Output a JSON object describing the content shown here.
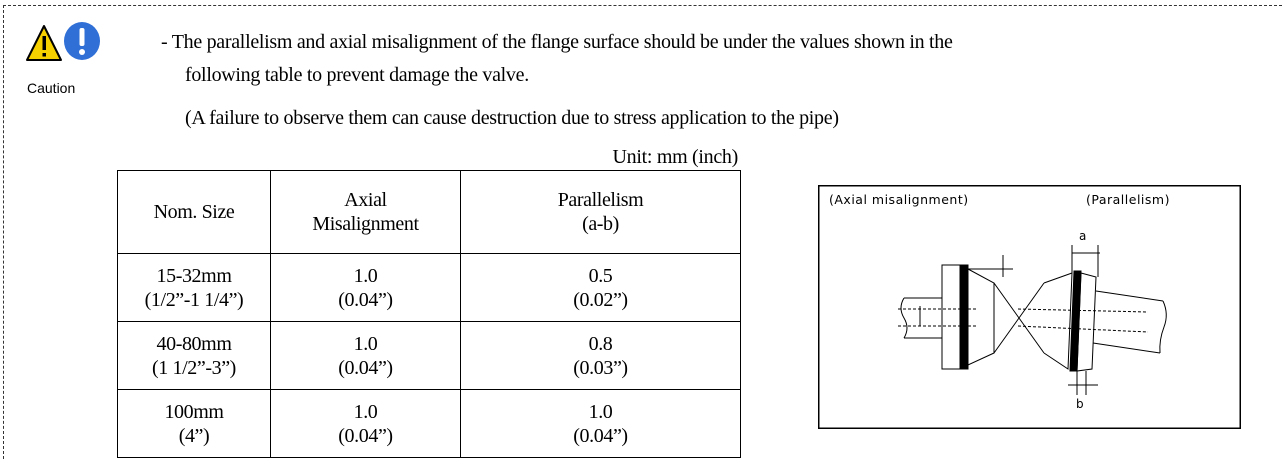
{
  "caution": {
    "label": "Caution",
    "lines": [
      "- The parallelism and axial misalignment of the flange surface should be under the values shown in the",
      "following table to prevent damage the valve.",
      "(A failure to observe them can cause destruction due to stress application to the pipe)"
    ]
  },
  "table": {
    "unit": "Unit: mm (inch)",
    "header": [
      [
        "Nom. Size"
      ],
      [
        "Axial",
        "Misalignment"
      ],
      [
        "Parallelism",
        "(a-b)"
      ]
    ],
    "rows": [
      [
        [
          "15-32mm",
          "(1/2”-1 1/4”)"
        ],
        [
          "1.0",
          "(0.04”)"
        ],
        [
          "0.5",
          "(0.02”)"
        ]
      ],
      [
        [
          "40-80mm",
          "(1 1/2”-3”)"
        ],
        [
          "1.0",
          "(0.04”)"
        ],
        [
          "0.8",
          "(0.03”)"
        ]
      ],
      [
        [
          "100mm",
          "(4”)"
        ],
        [
          "1.0",
          "(0.04”)"
        ],
        [
          "1.0",
          "(0.04”)"
        ]
      ]
    ]
  },
  "diagram": {
    "left_label": "(Axial misalignment)",
    "right_label": "(Parallelism)",
    "a": "a",
    "b": "b"
  }
}
